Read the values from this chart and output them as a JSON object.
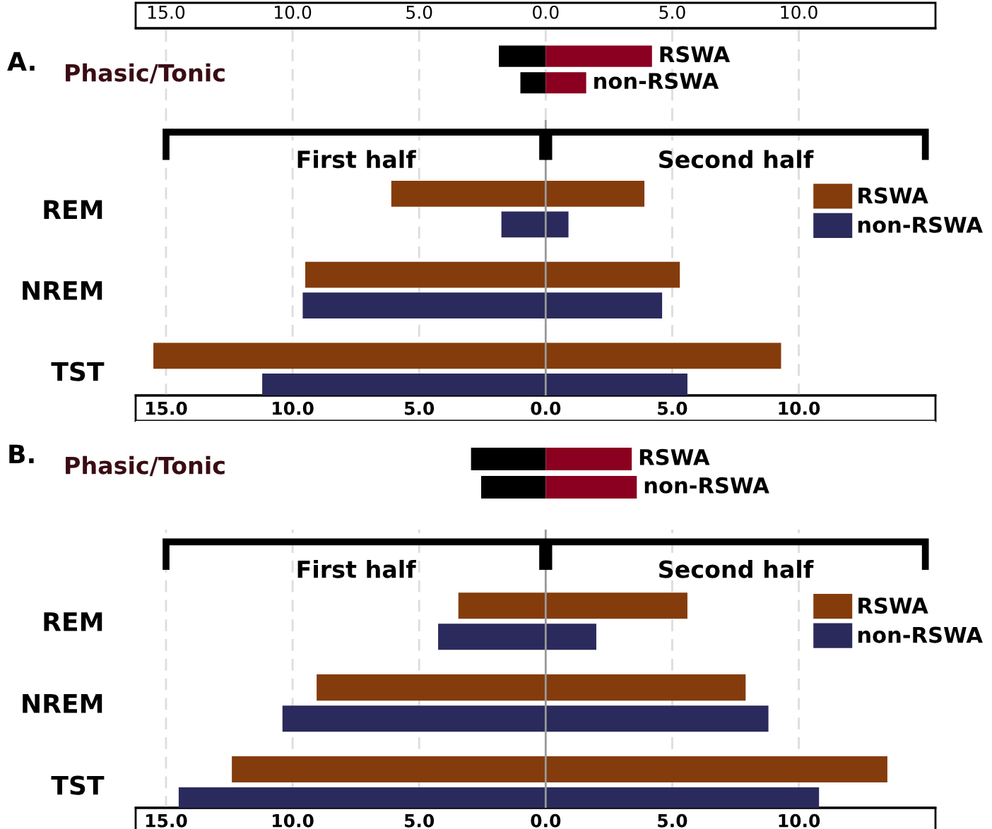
{
  "chart_data": [
    {
      "type": "bar",
      "title": "A.",
      "ylabel": "Phasic/Tonic",
      "orientation": "horizontal",
      "stacked": true,
      "categories": [
        "RSWA",
        "non-RSWA"
      ],
      "series": [
        {
          "color": "#000000",
          "values": [
            -1.85,
            -1.0
          ]
        },
        {
          "color": "#8b0020",
          "values": [
            4.2,
            1.6
          ]
        }
      ],
      "xlim": [
        -16.2,
        15.4
      ],
      "xticks": [
        {
          "value": -15,
          "label": "15.0"
        },
        {
          "value": -10,
          "label": "10.0"
        },
        {
          "value": -5,
          "label": "5.0"
        },
        {
          "value": 0,
          "label": "0.0"
        },
        {
          "value": 5,
          "label": "5.0"
        },
        {
          "value": 10,
          "label": "10.0"
        }
      ],
      "grid": "x",
      "tick_labels": "x"
    },
    {
      "type": "bar",
      "orientation": "horizontal",
      "categories": [
        "REM",
        "NREM",
        "TST"
      ],
      "annotations": [
        "First half",
        "Second half"
      ],
      "legend": "top right",
      "series": [
        {
          "name": "RSWA",
          "color": "#843c0c",
          "base": [
            -6.1,
            -9.5,
            -15.5
          ],
          "values": [
            10.0,
            14.8,
            24.8
          ]
        },
        {
          "name": "non-RSWA",
          "color": "#2b2a5c",
          "base": [
            -1.75,
            -9.6,
            -11.2
          ],
          "values": [
            2.65,
            14.2,
            16.8
          ]
        }
      ],
      "xlim": [
        -16.2,
        15.4
      ],
      "xticks": [
        {
          "value": -15,
          "label": "15.0"
        },
        {
          "value": -10,
          "label": "10.0"
        },
        {
          "value": -5,
          "label": "5.0"
        },
        {
          "value": 0,
          "label": "0.0"
        },
        {
          "value": 5,
          "label": "5.0"
        },
        {
          "value": 10,
          "label": "10.0"
        }
      ],
      "grid": "x",
      "ref_lines": [
        {
          "axis": "x",
          "value": 0,
          "color": "#999999"
        }
      ]
    },
    {
      "type": "bar",
      "title": "B.",
      "ylabel": "Phasic/Tonic",
      "orientation": "horizontal",
      "stacked": true,
      "categories": [
        "RSWA",
        "non-RSWA"
      ],
      "series": [
        {
          "color": "#000000",
          "values": [
            -2.95,
            -2.55
          ]
        },
        {
          "color": "#8b0020",
          "values": [
            3.4,
            3.6
          ]
        }
      ],
      "xlim": [
        -16.2,
        15.4
      ],
      "grid": "x",
      "tick_labels": false
    },
    {
      "type": "bar",
      "orientation": "horizontal",
      "categories": [
        "REM",
        "NREM",
        "TST"
      ],
      "annotations": [
        "First half",
        "Second half"
      ],
      "legend": "top right",
      "series": [
        {
          "name": "RSWA",
          "color": "#843c0c",
          "base": [
            -3.45,
            -9.05,
            -12.4
          ],
          "values": [
            9.05,
            16.95,
            25.9
          ]
        },
        {
          "name": "non-RSWA",
          "color": "#2b2a5c",
          "base": [
            -4.25,
            -10.4,
            -14.5
          ],
          "values": [
            6.25,
            19.2,
            25.3
          ]
        }
      ],
      "xlim": [
        -16.2,
        15.4
      ],
      "xticks": [
        {
          "value": -15,
          "label": "15.0"
        },
        {
          "value": -10,
          "label": "10.0"
        },
        {
          "value": -5,
          "label": "5.0"
        },
        {
          "value": 0,
          "label": "0.0"
        },
        {
          "value": 5,
          "label": "5.0"
        },
        {
          "value": 10,
          "label": "10.0"
        }
      ],
      "grid": "x",
      "ref_lines": [
        {
          "axis": "x",
          "value": 0,
          "color": "#999999"
        }
      ]
    }
  ]
}
